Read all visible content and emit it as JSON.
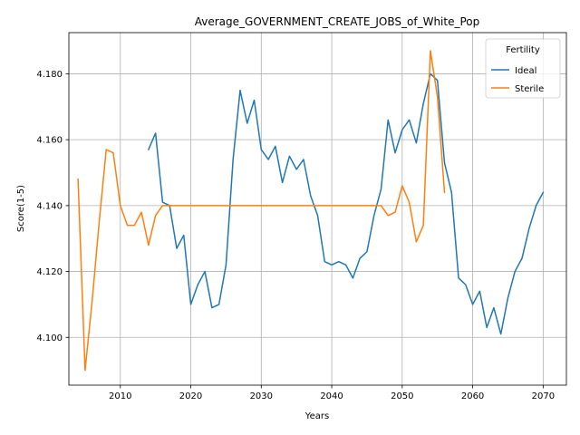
{
  "chart_data": {
    "type": "line",
    "title": "Average_GOVERNMENT_CREATE_JOBS_of_White_Pop",
    "xlabel": "Years",
    "ylabel": "Score(1-5)",
    "xlim": [
      2002.7,
      2073.3
    ],
    "ylim": [
      4.0855,
      4.1925
    ],
    "xticks": [
      2010,
      2020,
      2030,
      2040,
      2050,
      2060,
      2070
    ],
    "yticks": [
      4.1,
      4.12,
      4.14,
      4.16,
      4.18
    ],
    "ytick_labels": [
      "4.100",
      "4.120",
      "4.140",
      "4.160",
      "4.180"
    ],
    "grid": true,
    "legend": {
      "title": "Fertility",
      "position": "top-right"
    },
    "series": [
      {
        "name": "Ideal",
        "color": "#1f77b4",
        "x": [
          2014,
          2015,
          2016,
          2017,
          2018,
          2019,
          2020,
          2021,
          2022,
          2023,
          2024,
          2025,
          2026,
          2027,
          2028,
          2029,
          2030,
          2031,
          2032,
          2033,
          2034,
          2035,
          2036,
          2037,
          2038,
          2039,
          2040,
          2041,
          2042,
          2043,
          2044,
          2045,
          2046,
          2047,
          2048,
          2049,
          2050,
          2051,
          2052,
          2053,
          2054,
          2055,
          2056,
          2057,
          2058,
          2059,
          2060,
          2061,
          2062,
          2063,
          2064,
          2065,
          2066,
          2067,
          2068,
          2069,
          2070
        ],
        "y": [
          4.157,
          4.162,
          4.141,
          4.14,
          4.127,
          4.131,
          4.11,
          4.116,
          4.12,
          4.109,
          4.11,
          4.122,
          4.154,
          4.175,
          4.165,
          4.172,
          4.157,
          4.154,
          4.158,
          4.147,
          4.155,
          4.151,
          4.154,
          4.143,
          4.137,
          4.123,
          4.122,
          4.123,
          4.122,
          4.118,
          4.124,
          4.126,
          4.137,
          4.145,
          4.166,
          4.156,
          4.163,
          4.166,
          4.159,
          4.171,
          4.18,
          4.178,
          4.153,
          4.144,
          4.118,
          4.116,
          4.11,
          4.114,
          4.103,
          4.109,
          4.101,
          4.112,
          4.12,
          4.124,
          4.133,
          4.14,
          4.144
        ]
      },
      {
        "name": "Sterile",
        "color": "#ff7f0e",
        "x": [
          2004,
          2005,
          2006,
          2007,
          2008,
          2009,
          2010,
          2011,
          2012,
          2013,
          2014,
          2015,
          2016,
          2017,
          2018,
          2019,
          2020,
          2021,
          2022,
          2023,
          2024,
          2025,
          2026,
          2027,
          2028,
          2029,
          2030,
          2031,
          2032,
          2033,
          2034,
          2035,
          2036,
          2037,
          2038,
          2039,
          2040,
          2041,
          2042,
          2043,
          2044,
          2045,
          2046,
          2047,
          2048,
          2049,
          2050,
          2051,
          2052,
          2053,
          2054,
          2055,
          2056
        ],
        "y": [
          4.148,
          4.09,
          4.111,
          4.135,
          4.157,
          4.156,
          4.14,
          4.134,
          4.134,
          4.138,
          4.128,
          4.137,
          4.14,
          4.14,
          4.14,
          4.14,
          4.14,
          4.14,
          4.14,
          4.14,
          4.14,
          4.14,
          4.14,
          4.14,
          4.14,
          4.14,
          4.14,
          4.14,
          4.14,
          4.14,
          4.14,
          4.14,
          4.14,
          4.14,
          4.14,
          4.14,
          4.14,
          4.14,
          4.14,
          4.14,
          4.14,
          4.14,
          4.14,
          4.14,
          4.137,
          4.138,
          4.146,
          4.141,
          4.129,
          4.134,
          4.187,
          4.173,
          4.144
        ]
      }
    ]
  }
}
